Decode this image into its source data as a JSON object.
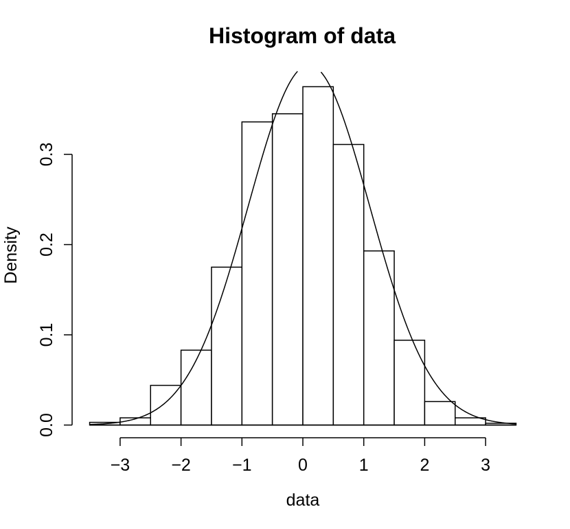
{
  "chart_data": {
    "type": "bar",
    "title": "Histogram of data",
    "xlabel": "data",
    "ylabel": "Density",
    "xlim": [
      -3.5,
      3.5
    ],
    "ylim": [
      0,
      0.375
    ],
    "grid": false,
    "bins": [
      {
        "x0": -3.5,
        "x1": -3.0,
        "density": 0.003
      },
      {
        "x0": -3.0,
        "x1": -2.5,
        "density": 0.008
      },
      {
        "x0": -2.5,
        "x1": -2.0,
        "density": 0.044
      },
      {
        "x0": -2.0,
        "x1": -1.5,
        "density": 0.083
      },
      {
        "x0": -1.5,
        "x1": -1.0,
        "density": 0.175
      },
      {
        "x0": -1.0,
        "x1": -0.5,
        "density": 0.336
      },
      {
        "x0": -0.5,
        "x1": 0.0,
        "density": 0.345
      },
      {
        "x0": 0.0,
        "x1": 0.5,
        "density": 0.375
      },
      {
        "x0": 0.5,
        "x1": 1.0,
        "density": 0.311
      },
      {
        "x0": 1.0,
        "x1": 1.5,
        "density": 0.193
      },
      {
        "x0": 1.5,
        "x1": 2.0,
        "density": 0.094
      },
      {
        "x0": 2.0,
        "x1": 2.5,
        "density": 0.026
      },
      {
        "x0": 2.5,
        "x1": 3.0,
        "density": 0.008
      },
      {
        "x0": 3.0,
        "x1": 3.5,
        "density": 0.002
      }
    ],
    "x_ticks": [
      {
        "value": -3,
        "label": "−3"
      },
      {
        "value": -2,
        "label": "−2"
      },
      {
        "value": -1,
        "label": "−1"
      },
      {
        "value": 0,
        "label": "0"
      },
      {
        "value": 1,
        "label": "1"
      },
      {
        "value": 2,
        "label": "2"
      },
      {
        "value": 3,
        "label": "3"
      }
    ],
    "y_ticks": [
      {
        "value": 0.0,
        "label": "0.0"
      },
      {
        "value": 0.1,
        "label": "0.1"
      },
      {
        "value": 0.2,
        "label": "0.2"
      },
      {
        "value": 0.3,
        "label": "0.3"
      }
    ],
    "overlay_curve": {
      "type": "normal-density",
      "mean": 0.1,
      "sd": 1.0,
      "x_range": [
        -3.5,
        3.5
      ]
    }
  }
}
